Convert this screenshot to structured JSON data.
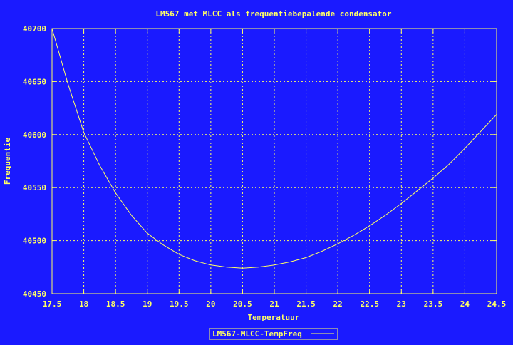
{
  "chart_data": {
    "type": "line",
    "title": "LM567 met MLCC als frequentiebepalende condensator",
    "xlabel": "Temperatuur",
    "ylabel": "Frequentie",
    "xlim": [
      17.5,
      24.5
    ],
    "ylim": [
      40450,
      40700
    ],
    "x_ticks": [
      17.5,
      18,
      18.5,
      19,
      19.5,
      20,
      20.5,
      21,
      21.5,
      22,
      22.5,
      23,
      23.5,
      24,
      24.5
    ],
    "x_tick_labels": [
      "17.5",
      "18",
      "18.5",
      "19",
      "19.5",
      "20",
      "20.5",
      "21",
      "21.5",
      "22",
      "22.5",
      "23",
      "23.5",
      "24",
      "24.5"
    ],
    "y_ticks": [
      40450,
      40500,
      40550,
      40600,
      40650,
      40700
    ],
    "y_tick_labels": [
      "40450",
      "40500",
      "40550",
      "40600",
      "40650",
      "40700"
    ],
    "grid": true,
    "legend_position": "bottom-center",
    "colors": {
      "background": "#1a1aff",
      "line": "#ffff66",
      "text": "#ffff66",
      "grid": "#ffff66",
      "axes": "#ffff66"
    },
    "series": [
      {
        "name": "LM567-MLCC-TempFreq",
        "x": [
          17.5,
          17.75,
          18,
          18.25,
          18.5,
          18.75,
          19,
          19.25,
          19.5,
          19.75,
          20,
          20.25,
          20.5,
          20.75,
          21,
          21.25,
          21.5,
          21.75,
          22,
          22.25,
          22.5,
          22.75,
          23,
          23.25,
          23.5,
          23.75,
          24,
          24.25,
          24.5
        ],
        "y": [
          40700,
          40648,
          40602,
          40571,
          40545,
          40524,
          40507,
          40496,
          40487,
          40481,
          40477,
          40475,
          40474,
          40475,
          40477,
          40480,
          40484,
          40490,
          40497,
          40505,
          40514,
          40524,
          40535,
          40547,
          40559,
          40572,
          40587,
          40603,
          40619
        ]
      }
    ]
  }
}
